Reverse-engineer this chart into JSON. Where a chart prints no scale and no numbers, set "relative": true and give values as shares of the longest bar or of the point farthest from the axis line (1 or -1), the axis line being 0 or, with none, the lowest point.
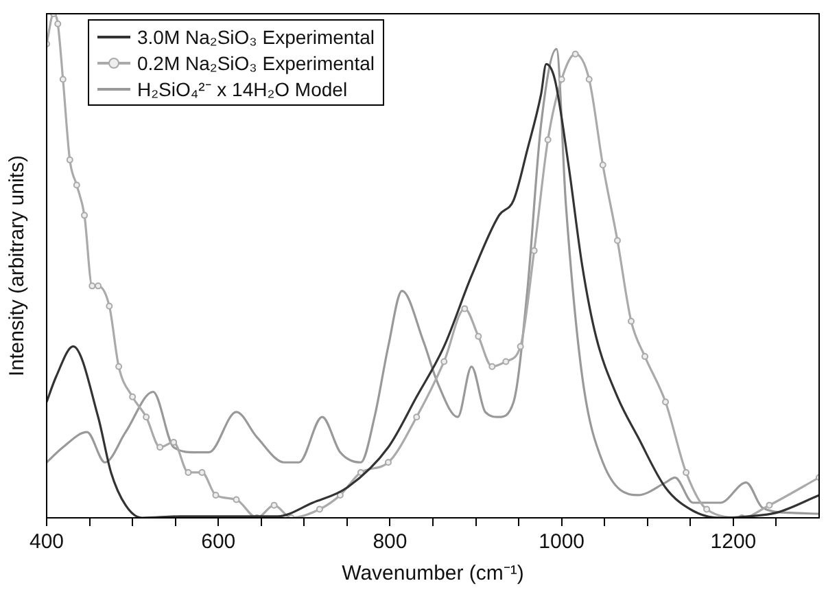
{
  "chart_data": {
    "type": "line",
    "relative": true,
    "xlabel": "Wavenumber (cm⁻¹)",
    "ylabel": "Intensity (arbitrary units)",
    "xlim": [
      400,
      1300
    ],
    "xticks": [
      400,
      {
        "value": 450,
        "label": null
      },
      {
        "value": 500,
        "label": null
      },
      {
        "value": 550,
        "label": null
      },
      600,
      {
        "value": 650,
        "label": null
      },
      {
        "value": 700,
        "label": null
      },
      {
        "value": 750,
        "label": null
      },
      800,
      {
        "value": 850,
        "label": null
      },
      {
        "value": 900,
        "label": null
      },
      {
        "value": 950,
        "label": null
      },
      1000,
      {
        "value": 1050,
        "label": null
      },
      {
        "value": 1100,
        "label": null
      },
      {
        "value": 1150,
        "label": null
      },
      1200,
      {
        "value": 1250,
        "label": null
      }
    ],
    "legend": "top left",
    "grid": false,
    "line_style": "solid",
    "series": [
      {
        "name": "3.0M Na₂SiO₃ Experimental",
        "color": "#333333",
        "marker": "none",
        "x": [
          400,
          411,
          431,
          460,
          475,
          492,
          511,
          556,
          621,
          669,
          710,
          750,
          798,
          831,
          863,
          895,
          927,
          944,
          960,
          976,
          982,
          992,
          1008,
          1024,
          1040,
          1065,
          1089,
          1121,
          1153,
          1185,
          1218,
          1250,
          1300
        ],
        "values": [
          0.23,
          0.28,
          0.34,
          0.2,
          0.09,
          0.025,
          0,
          0.003,
          0.003,
          0.003,
          0.03,
          0.06,
          0.14,
          0.24,
          0.34,
          0.48,
          0.6,
          0.63,
          0.73,
          0.84,
          0.9,
          0.87,
          0.7,
          0.5,
          0.36,
          0.24,
          0.16,
          0.06,
          0.014,
          0,
          0.003,
          0.01,
          0.045
        ]
      },
      {
        "name": "0.2M Na₂SiO₃ Experimental",
        "color": "#aaaaaa",
        "marker": "circle",
        "x": [
          400,
          408,
          413,
          419,
          427,
          435,
          444,
          453,
          460,
          473,
          484,
          500,
          516,
          532,
          548,
          565,
          581,
          597,
          621,
          645,
          665,
          685,
          718,
          742,
          766,
          798,
          831,
          863,
          887,
          903,
          919,
          935,
          952,
          968,
          984,
          1000,
          1016,
          1032,
          1048,
          1065,
          1081,
          1097,
          1121,
          1145,
          1169,
          1210,
          1242,
          1300
        ],
        "values": [
          0.94,
          1,
          0.98,
          0.87,
          0.71,
          0.66,
          0.6,
          0.46,
          0.46,
          0.42,
          0.3,
          0.24,
          0.2,
          0.14,
          0.15,
          0.09,
          0.09,
          0.045,
          0.036,
          0,
          0.025,
          0,
          0.017,
          0.045,
          0.09,
          0.11,
          0.2,
          0.31,
          0.415,
          0.36,
          0.3,
          0.31,
          0.34,
          0.53,
          0.75,
          0.87,
          0.92,
          0.87,
          0.7,
          0.55,
          0.39,
          0.32,
          0.23,
          0.09,
          0.017,
          0,
          0.025,
          0.08
        ]
      },
      {
        "name": "H₂SiO₄²⁻ x 14H₂O Model",
        "color": "#999999",
        "marker": "none",
        "x": [
          400,
          419,
          447,
          468,
          492,
          524,
          548,
          573,
          589,
          621,
          645,
          677,
          694,
          721,
          742,
          766,
          782,
          798,
          814,
          839,
          855,
          879,
          895,
          911,
          927,
          944,
          960,
          976,
          994,
          1005,
          1024,
          1048,
          1089,
          1121,
          1132,
          1153,
          1185,
          1215,
          1234,
          1266,
          1300
        ],
        "values": [
          0.11,
          0.14,
          0.17,
          0.11,
          0.17,
          0.25,
          0.14,
          0.13,
          0.13,
          0.21,
          0.16,
          0.11,
          0.11,
          0.2,
          0.13,
          0.11,
          0.2,
          0.34,
          0.45,
          0.35,
          0.27,
          0.2,
          0.3,
          0.21,
          0.2,
          0.23,
          0.45,
          0.78,
          0.93,
          0.62,
          0.28,
          0.11,
          0.045,
          0.07,
          0.08,
          0.03,
          0.03,
          0.07,
          0.02,
          0.01,
          0.008
        ]
      }
    ]
  }
}
